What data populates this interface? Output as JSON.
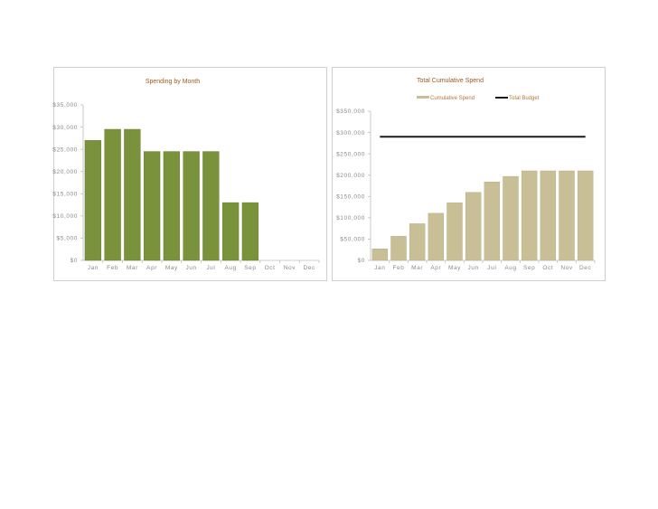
{
  "colors": {
    "left_bar": "#7a923c",
    "left_bar_edge": "#6a8232",
    "right_bar": "#c9bf97",
    "right_bar_edge": "#b9af86",
    "budget_line": "#1a1a1a",
    "axis": "#bdbdbd",
    "title": "#9c5a1e",
    "tick": "#8a8a8a"
  },
  "chart_data": [
    {
      "type": "bar",
      "title": "Spending by Month",
      "xlabel": "",
      "ylabel": "",
      "categories": [
        "Jan",
        "Feb",
        "Mar",
        "Apr",
        "May",
        "Jun",
        "Jul",
        "Aug",
        "Sep",
        "Oct",
        "Nov",
        "Dec"
      ],
      "series": [
        {
          "name": "Spending",
          "values": [
            27000,
            29500,
            29500,
            24500,
            24500,
            24500,
            24500,
            13000,
            13000,
            0,
            0,
            0
          ]
        }
      ],
      "ylim": [
        0,
        35000
      ],
      "yticks": [
        0,
        5000,
        10000,
        15000,
        20000,
        25000,
        30000,
        35000
      ],
      "ytick_labels": [
        "$0",
        "$5,000",
        "$10,000",
        "$15,000",
        "$20,000",
        "$25,000",
        "$30,000",
        "$35,000"
      ],
      "grid": false,
      "legend": "none"
    },
    {
      "type": "bar",
      "title": "Total Cumulative Spend",
      "xlabel": "",
      "ylabel": "",
      "categories": [
        "Jan",
        "Feb",
        "Mar",
        "Apr",
        "May",
        "Jun",
        "Jul",
        "Aug",
        "Sep",
        "Oct",
        "Nov",
        "Dec"
      ],
      "series": [
        {
          "name": "Cumulative Spend",
          "kind": "bar",
          "values": [
            27000,
            56500,
            86000,
            110500,
            135000,
            159500,
            184000,
            197000,
            210000,
            210000,
            210000,
            210000
          ]
        },
        {
          "name": "Total Budget",
          "kind": "line",
          "values": [
            290000,
            290000,
            290000,
            290000,
            290000,
            290000,
            290000,
            290000,
            290000,
            290000,
            290000,
            290000
          ]
        }
      ],
      "ylim": [
        0,
        350000
      ],
      "yticks": [
        0,
        50000,
        100000,
        150000,
        200000,
        250000,
        300000,
        350000
      ],
      "ytick_labels": [
        "$0",
        "$50,000",
        "$100,000",
        "$150,000",
        "$200,000",
        "$250,000",
        "$300,000",
        "$350,000"
      ],
      "grid": false,
      "legend": "top-right"
    }
  ]
}
